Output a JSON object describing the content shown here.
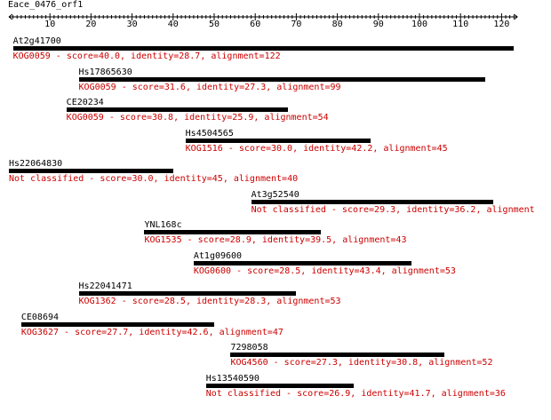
{
  "query": {
    "name": "Eace_0476_orf1",
    "length": 123
  },
  "ruler": {
    "tick_labels": [
      "10",
      "20",
      "30",
      "40",
      "50",
      "60",
      "70",
      "80",
      "90",
      "100",
      "110",
      "120"
    ]
  },
  "colors": {
    "text": "#000000",
    "hit_desc": "#cc0000",
    "bar": "#000000"
  },
  "hits": [
    {
      "name": "At2g41700",
      "start": 1,
      "end": 123,
      "desc": "KOG0059 - score=40.0, identity=28.7, alignment=122"
    },
    {
      "name": "Hs17865630",
      "start": 17,
      "end": 116,
      "desc": "KOG0059 - score=31.6, identity=27.3, alignment=99"
    },
    {
      "name": "CE20234",
      "start": 14,
      "end": 68,
      "desc": "KOG0059 - score=30.8, identity=25.9, alignment=54"
    },
    {
      "name": "Hs4504565",
      "start": 43,
      "end": 88,
      "desc": "KOG1516 - score=30.0, identity=42.2, alignment=45"
    },
    {
      "name": "Hs22064830",
      "start": 0,
      "end": 40,
      "desc": "Not classified - score=30.0, identity=45, alignment=40"
    },
    {
      "name": "At3g52540",
      "start": 59,
      "end": 118,
      "desc": "Not classified - score=29.3, identity=36.2, alignment"
    },
    {
      "name": "YNL168c",
      "start": 33,
      "end": 76,
      "desc": "KOG1535 - score=28.9, identity=39.5, alignment=43"
    },
    {
      "name": "At1g09600",
      "start": 45,
      "end": 98,
      "desc": "KOG0600 - score=28.5, identity=43.4, alignment=53"
    },
    {
      "name": "Hs22041471",
      "start": 17,
      "end": 70,
      "desc": "KOG1362 - score=28.5, identity=28.3, alignment=53"
    },
    {
      "name": "CE08694",
      "start": 3,
      "end": 50,
      "desc": "KOG3627 - score=27.7, identity=42.6, alignment=47"
    },
    {
      "name": "7298058",
      "start": 54,
      "end": 106,
      "desc": "KOG4560 - score=27.3, identity=30.8, alignment=52"
    },
    {
      "name": "Hs13540590",
      "start": 48,
      "end": 84,
      "desc": "Not classified - score=26.9, identity=41.7, alignment=36"
    }
  ]
}
